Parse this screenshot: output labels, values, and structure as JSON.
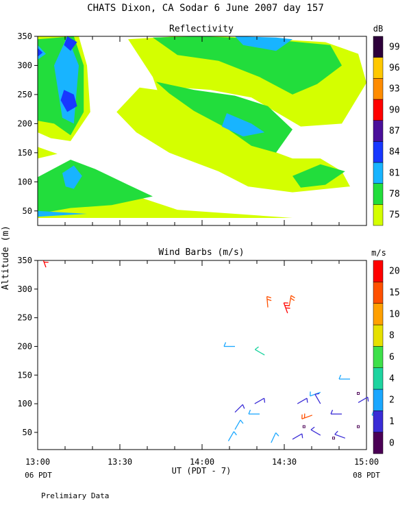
{
  "page": {
    "title": "CHATS Dixon, CA  Sodar   6 June 2007  day 157",
    "y_axis_label": "Altitude (m)",
    "x_axis_label": "UT  (PDT - 7)",
    "start_local": "06 PDT",
    "end_local": "08 PDT",
    "footer": "Prelimiary Data"
  },
  "chart_data": [
    {
      "type": "heatmap",
      "title": "Reflectivity",
      "colorbar_unit": "dB",
      "colorbar": [
        {
          "label": "75",
          "color": "#d4ff00"
        },
        {
          "label": "78",
          "color": "#22dd3c"
        },
        {
          "label": "81",
          "color": "#18b4ff"
        },
        {
          "label": "84",
          "color": "#1838ff"
        },
        {
          "label": "87",
          "color": "#4a109a"
        },
        {
          "label": "90",
          "color": "#ff0000"
        },
        {
          "label": "93",
          "color": "#ff8c00"
        },
        {
          "label": "96",
          "color": "#ffc800"
        },
        {
          "label": "99",
          "color": "#2d003a"
        }
      ],
      "y_ticks": [
        50,
        100,
        150,
        200,
        250,
        300,
        350
      ],
      "ylim": [
        25,
        350
      ],
      "x_range_hours": [
        13.0,
        15.0
      ],
      "contours": [
        {
          "level": "75",
          "polys": [
            [
              [
                13.0,
                350
              ],
              [
                13.25,
                350
              ],
              [
                13.3,
                300
              ],
              [
                13.32,
                220
              ],
              [
                13.2,
                170
              ],
              [
                13.08,
                175
              ],
              [
                13.0,
                185
              ]
            ],
            [
              [
                13.0,
                160
              ],
              [
                13.12,
                148
              ],
              [
                13.0,
                140
              ]
            ],
            [
              [
                13.0,
                70
              ],
              [
                13.2,
                110
              ],
              [
                13.35,
                108
              ],
              [
                13.55,
                80
              ],
              [
                13.85,
                52
              ],
              [
                14.2,
                45
              ],
              [
                14.55,
                38
              ],
              [
                13.0,
                38
              ]
            ],
            [
              [
                13.55,
                345
              ],
              [
                13.85,
                350
              ],
              [
                14.1,
                350
              ],
              [
                14.45,
                345
              ],
              [
                14.75,
                340
              ],
              [
                14.95,
                320
              ],
              [
                15.0,
                270
              ],
              [
                14.85,
                200
              ],
              [
                14.6,
                195
              ],
              [
                14.3,
                245
              ],
              [
                14.05,
                258
              ],
              [
                13.85,
                262
              ],
              [
                13.75,
                240
              ],
              [
                13.7,
                280
              ]
            ],
            [
              [
                13.48,
                220
              ],
              [
                13.62,
                262
              ],
              [
                13.8,
                255
              ],
              [
                14.2,
                200
              ],
              [
                14.38,
                158
              ],
              [
                14.55,
                140
              ],
              [
                14.72,
                140
              ],
              [
                14.85,
                118
              ],
              [
                14.9,
                92
              ],
              [
                14.55,
                82
              ],
              [
                14.28,
                92
              ],
              [
                14.1,
                118
              ],
              [
                13.8,
                150
              ],
              [
                13.6,
                185
              ]
            ]
          ]
        },
        {
          "level": "78",
          "polys": [
            [
              [
                13.0,
                345
              ],
              [
                13.22,
                350
              ],
              [
                13.28,
                300
              ],
              [
                13.28,
                220
              ],
              [
                13.2,
                180
              ],
              [
                13.1,
                200
              ],
              [
                13.0,
                205
              ]
            ],
            [
              [
                13.0,
                108
              ],
              [
                13.2,
                138
              ],
              [
                13.35,
                122
              ],
              [
                13.55,
                95
              ],
              [
                13.7,
                75
              ],
              [
                13.45,
                60
              ],
              [
                13.2,
                55
              ],
              [
                13.0,
                45
              ]
            ],
            [
              [
                13.7,
                348
              ],
              [
                14.0,
                350
              ],
              [
                14.4,
                345
              ],
              [
                14.78,
                335
              ],
              [
                14.85,
                300
              ],
              [
                14.7,
                268
              ],
              [
                14.55,
                250
              ],
              [
                14.35,
                280
              ],
              [
                14.1,
                308
              ],
              [
                13.85,
                318
              ]
            ],
            [
              [
                13.72,
                272
              ],
              [
                13.8,
                252
              ],
              [
                13.95,
                222
              ],
              [
                14.15,
                192
              ],
              [
                14.3,
                162
              ],
              [
                14.45,
                150
              ],
              [
                14.55,
                190
              ],
              [
                14.4,
                230
              ],
              [
                14.2,
                248
              ],
              [
                13.95,
                258
              ]
            ],
            [
              [
                14.55,
                110
              ],
              [
                14.72,
                130
              ],
              [
                14.87,
                118
              ],
              [
                14.75,
                95
              ],
              [
                14.6,
                90
              ]
            ]
          ]
        },
        {
          "level": "81",
          "polys": [
            [
              [
                13.0,
                335
              ],
              [
                13.05,
                320
              ],
              [
                13.0,
                310
              ]
            ],
            [
              [
                13.18,
                350
              ],
              [
                13.25,
                300
              ],
              [
                13.22,
                200
              ],
              [
                13.15,
                210
              ],
              [
                13.1,
                300
              ]
            ],
            [
              [
                13.15,
                115
              ],
              [
                13.22,
                128
              ],
              [
                13.27,
                110
              ],
              [
                13.22,
                88
              ],
              [
                13.17,
                92
              ]
            ],
            [
              [
                14.2,
                350
              ],
              [
                14.45,
                348
              ],
              [
                14.55,
                345
              ],
              [
                14.45,
                325
              ],
              [
                14.25,
                335
              ]
            ],
            [
              [
                14.15,
                218
              ],
              [
                14.3,
                200
              ],
              [
                14.38,
                185
              ],
              [
                14.25,
                178
              ],
              [
                14.12,
                195
              ]
            ],
            [
              [
                13.0,
                50
              ],
              [
                13.3,
                45
              ],
              [
                13.0,
                40
              ]
            ]
          ]
        },
        {
          "level": "84",
          "polys": [
            [
              [
                13.0,
                330
              ],
              [
                13.03,
                322
              ],
              [
                13.0,
                315
              ]
            ],
            [
              [
                13.18,
                350
              ],
              [
                13.24,
                340
              ],
              [
                13.2,
                325
              ],
              [
                13.16,
                335
              ]
            ],
            [
              [
                13.16,
                258
              ],
              [
                13.22,
                250
              ],
              [
                13.24,
                230
              ],
              [
                13.18,
                220
              ],
              [
                13.14,
                240
              ]
            ]
          ]
        }
      ]
    },
    {
      "type": "scatter",
      "title": "Wind Barbs (m/s)",
      "colorbar_unit": "m/s",
      "colorbar": [
        {
          "label": "0",
          "color": "#4b0055"
        },
        {
          "label": "1",
          "color": "#3a2cd6"
        },
        {
          "label": "2",
          "color": "#1aa7ff"
        },
        {
          "label": "4",
          "color": "#1ed4a0"
        },
        {
          "label": "6",
          "color": "#3ee04a"
        },
        {
          "label": "8",
          "color": "#e6e000"
        },
        {
          "label": "10",
          "color": "#ffa000"
        },
        {
          "label": "15",
          "color": "#ff5000"
        },
        {
          "label": "20",
          "color": "#ff0000"
        }
      ],
      "y_ticks": [
        50,
        100,
        150,
        200,
        250,
        300,
        350
      ],
      "ylim": [
        20,
        350
      ],
      "x_ticks": [
        "13:00",
        "13:30",
        "14:00",
        "14:30",
        "15:00"
      ],
      "xlim": [
        "13:00",
        "15:00"
      ],
      "barbs": [
        {
          "t": 13.05,
          "alt": 338,
          "dir": 340,
          "bin": "20",
          "flags": 3
        },
        {
          "t": 14.4,
          "alt": 268,
          "dir": 355,
          "bin": "15",
          "flags": 2
        },
        {
          "t": 14.53,
          "alt": 270,
          "dir": 10,
          "bin": "15",
          "flags": 2
        },
        {
          "t": 14.52,
          "alt": 258,
          "dir": 340,
          "bin": "20",
          "flags": 3
        },
        {
          "t": 14.2,
          "alt": 200,
          "dir": 270,
          "bin": "2",
          "flags": 1
        },
        {
          "t": 14.38,
          "alt": 185,
          "dir": 300,
          "bin": "4",
          "flags": 1
        },
        {
          "t": 14.9,
          "alt": 143,
          "dir": 270,
          "bin": "2",
          "flags": 1
        },
        {
          "t": 14.72,
          "alt": 120,
          "dir": 250,
          "bin": "2",
          "flags": 1
        },
        {
          "t": 14.32,
          "alt": 100,
          "dir": 60,
          "bin": "1",
          "flags": 1
        },
        {
          "t": 14.2,
          "alt": 85,
          "dir": 45,
          "bin": "1",
          "flags": 1
        },
        {
          "t": 14.58,
          "alt": 100,
          "dir": 60,
          "bin": "1",
          "flags": 1
        },
        {
          "t": 14.72,
          "alt": 100,
          "dir": 330,
          "bin": "1",
          "flags": 1
        },
        {
          "t": 14.85,
          "alt": 82,
          "dir": 270,
          "bin": "1",
          "flags": 1
        },
        {
          "t": 14.95,
          "alt": 102,
          "dir": 60,
          "bin": "1",
          "flags": 1
        },
        {
          "t": 14.67,
          "alt": 80,
          "dir": 250,
          "bin": "15",
          "flags": 2
        },
        {
          "t": 14.35,
          "alt": 82,
          "dir": 270,
          "bin": "2",
          "flags": 1
        },
        {
          "t": 14.2,
          "alt": 55,
          "dir": 30,
          "bin": "2",
          "flags": 1
        },
        {
          "t": 14.16,
          "alt": 35,
          "dir": 30,
          "bin": "2",
          "flags": 1
        },
        {
          "t": 14.42,
          "alt": 32,
          "dir": 25,
          "bin": "2",
          "flags": 1
        },
        {
          "t": 14.55,
          "alt": 38,
          "dir": 60,
          "bin": "1",
          "flags": 1
        },
        {
          "t": 14.72,
          "alt": 45,
          "dir": 300,
          "bin": "1",
          "flags": 1
        },
        {
          "t": 14.87,
          "alt": 40,
          "dir": 290,
          "bin": "1",
          "flags": 1
        },
        {
          "t": 15.1,
          "alt": 80,
          "dir": 270,
          "bin": "2",
          "flags": 1
        }
      ],
      "calm_points": [
        {
          "t": 14.95,
          "alt": 118
        },
        {
          "t": 14.95,
          "alt": 60
        },
        {
          "t": 14.62,
          "alt": 60
        },
        {
          "t": 14.8,
          "alt": 40
        }
      ]
    }
  ]
}
